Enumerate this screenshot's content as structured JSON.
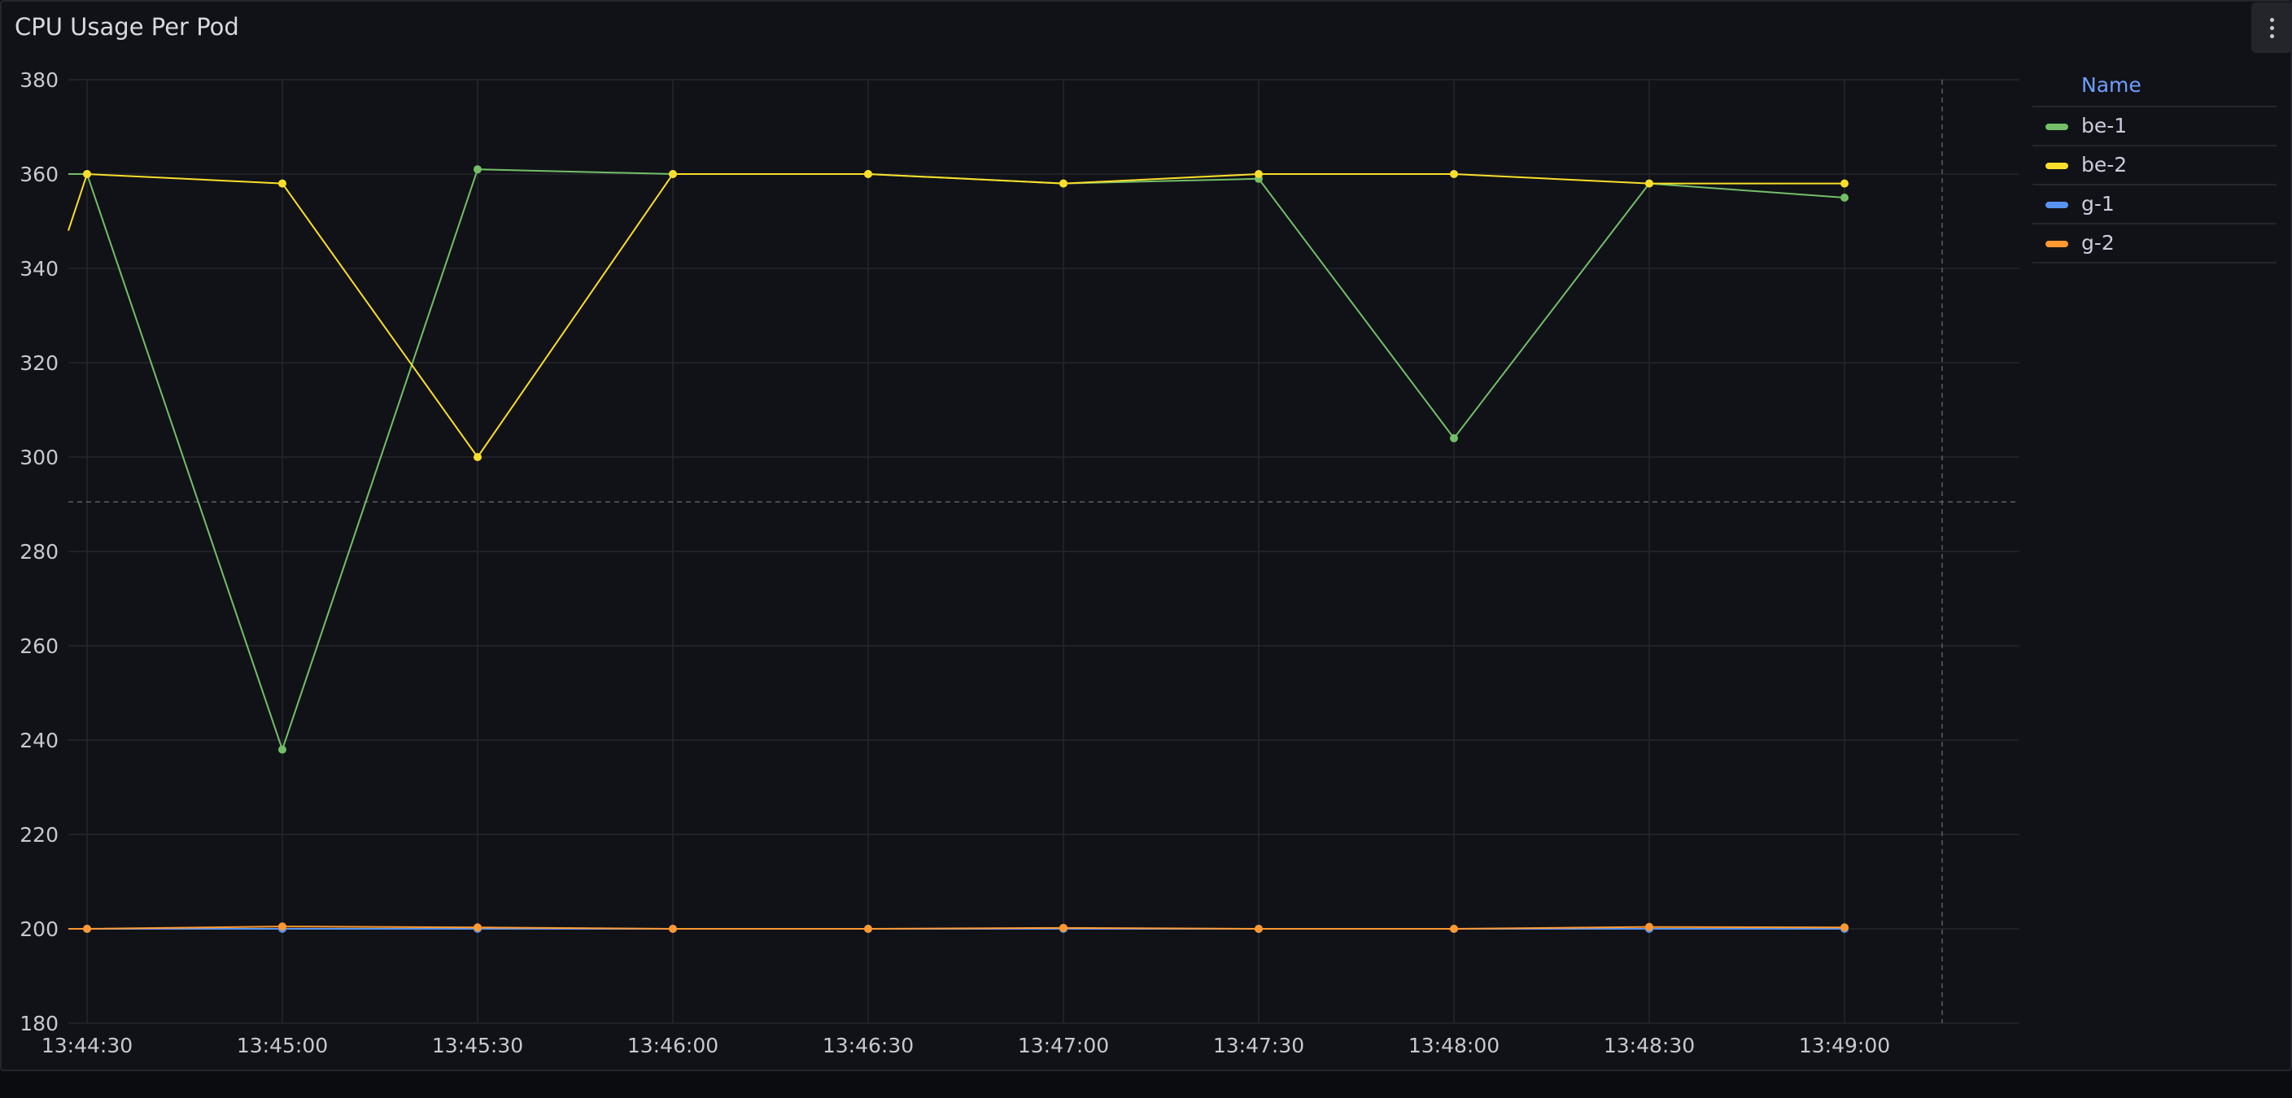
{
  "panel": {
    "title": "CPU Usage Per Pod"
  },
  "legend": {
    "header": "Name",
    "items": [
      {
        "label": "be-1",
        "color": "#73bf69"
      },
      {
        "label": "be-2",
        "color": "#fade2a"
      },
      {
        "label": "g-1",
        "color": "#5794f2"
      },
      {
        "label": "g-2",
        "color": "#ff9830"
      }
    ]
  },
  "icons": {
    "menu": "vertical-ellipsis-icon"
  },
  "chart_data": {
    "type": "line",
    "title": "CPU Usage Per Pod",
    "xlabel": "",
    "ylabel": "",
    "ylim": [
      180,
      380
    ],
    "yticks": [
      180,
      200,
      220,
      240,
      260,
      280,
      300,
      320,
      340,
      360,
      380
    ],
    "xlim": [
      "13:44:24",
      "13:49:24"
    ],
    "x": [
      "13:44:30",
      "13:45:00",
      "13:45:30",
      "13:46:00",
      "13:46:30",
      "13:47:00",
      "13:47:30",
      "13:48:00",
      "13:48:30",
      "13:49:00"
    ],
    "x_tick_labels": [
      "13:44:30",
      "13:45:00",
      "13:45:30",
      "13:46:00",
      "13:46:30",
      "13:47:00",
      "13:47:30",
      "13:48:00",
      "13:48:30",
      "13:49:00"
    ],
    "grid": true,
    "legend_position": "right",
    "threshold_line": 290.5,
    "cursor_time": "13:49:15",
    "series": [
      {
        "name": "be-1",
        "color": "#73bf69",
        "lead_in": 360,
        "values": [
          360,
          238,
          361,
          360,
          360,
          358,
          359,
          304,
          358,
          355
        ]
      },
      {
        "name": "be-2",
        "color": "#fade2a",
        "lead_in": 348,
        "values": [
          360,
          358,
          300,
          360,
          360,
          358,
          360,
          360,
          358,
          358
        ]
      },
      {
        "name": "g-1",
        "color": "#5794f2",
        "lead_in": null,
        "values": [
          200,
          200,
          200,
          200,
          200,
          200,
          200,
          200,
          200,
          200
        ]
      },
      {
        "name": "g-2",
        "color": "#ff9830",
        "lead_in": null,
        "values": [
          200,
          200.5,
          200.3,
          200,
          200,
          200.2,
          200,
          200,
          200.4,
          200.3
        ]
      }
    ]
  }
}
